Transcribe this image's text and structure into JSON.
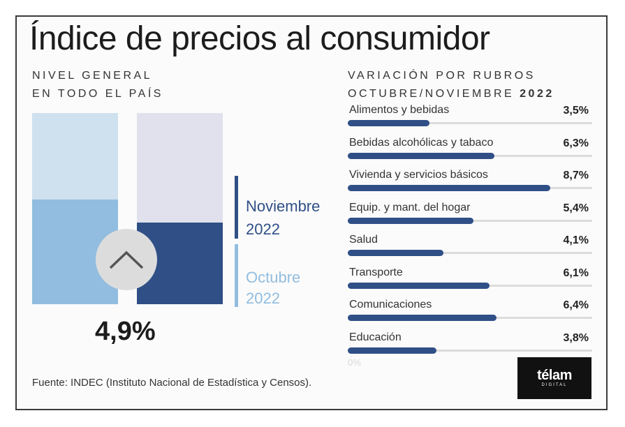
{
  "title": "Índice de precios al consumidor",
  "left_subtitle": {
    "line1": "NIVEL GENERAL",
    "line2": "EN TODO EL PAÍS"
  },
  "right_subtitle": {
    "line1": "VARIACIÓN POR RUBROS",
    "line2_prefix": "OCTUBRE/NOVIEMBRE ",
    "line2_bold": "2022"
  },
  "legend": {
    "noviembre": {
      "month": "Noviembre",
      "year": "2022"
    },
    "octubre": {
      "month": "Octubre",
      "year": "2022"
    }
  },
  "headline_value": "4,9%",
  "arrow_icon": "chevron-up-icon",
  "source": "Fuente: INDEC (Instituto Nacional de Estadística y Censos).",
  "logo": {
    "name": "télam",
    "sub": "DIGITAL"
  },
  "colors": {
    "octubre_fill": "#92bde0",
    "octubre_bg": "#cfe0ef",
    "noviembre_fill": "#2f4f86",
    "noviembre_bg": "#e0e1ec",
    "bar": "#2f4f86"
  },
  "chart_data": [
    {
      "type": "bar",
      "categories": [
        "Octubre 2022",
        "Noviembre 2022"
      ],
      "values": [
        6.3,
        4.9
      ],
      "note": "nivel general, altura relativa aproximada"
    },
    {
      "type": "bar",
      "orientation": "horizontal",
      "categories": [
        "Alimentos y bebidas",
        "Bebidas alcohólicas y tabaco",
        "Vivienda y servicios básicos",
        "Equip. y mant. del hogar",
        "Salud",
        "Transporte",
        "Comunicaciones",
        "Educación"
      ],
      "values": [
        3.5,
        6.3,
        8.7,
        5.4,
        4.1,
        6.1,
        6.4,
        3.8
      ],
      "value_labels": [
        "3,5%",
        "6,3%",
        "8,7%",
        "5,4%",
        "4,1%",
        "6,1%",
        "6,4%",
        "3,8%"
      ],
      "xlim": [
        0,
        10.5
      ],
      "axis_label": "0%"
    }
  ]
}
